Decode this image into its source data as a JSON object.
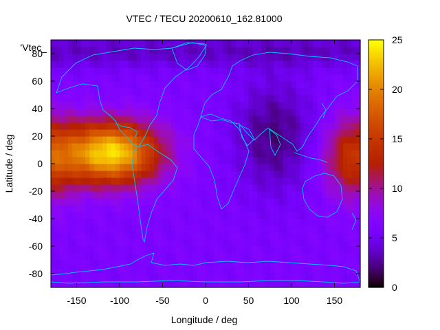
{
  "chart_data": {
    "type": "heatmap",
    "title": "VTEC / TECU 20200610_162.81000",
    "xlabel": "Longitude / deg",
    "ylabel": "Latitude / deg",
    "legend_label": "'Vtec_",
    "xlim": [
      -180,
      180
    ],
    "ylim": [
      -90,
      90
    ],
    "x_ticks": [
      -150,
      -100,
      -50,
      0,
      50,
      100,
      150
    ],
    "y_ticks": [
      -80,
      -60,
      -40,
      -20,
      0,
      20,
      40,
      60,
      80
    ],
    "colorbar": {
      "min": 0,
      "max": 25,
      "ticks": [
        0,
        5,
        10,
        15,
        20,
        25
      ],
      "palette": "gnuplot-rgbformulae-7-5-15"
    },
    "coastline_color": "#00c8ff",
    "features": {
      "background_tec": 6,
      "anomaly_max_tec": 24,
      "anomaly_center": {
        "lon": -110,
        "lat": 8
      },
      "secondary_max_tec": 15,
      "secondary_center": {
        "lon": 175,
        "lat": 5
      },
      "low_tec_region": {
        "lon": 80,
        "lat": 20,
        "tec": 2
      }
    }
  }
}
